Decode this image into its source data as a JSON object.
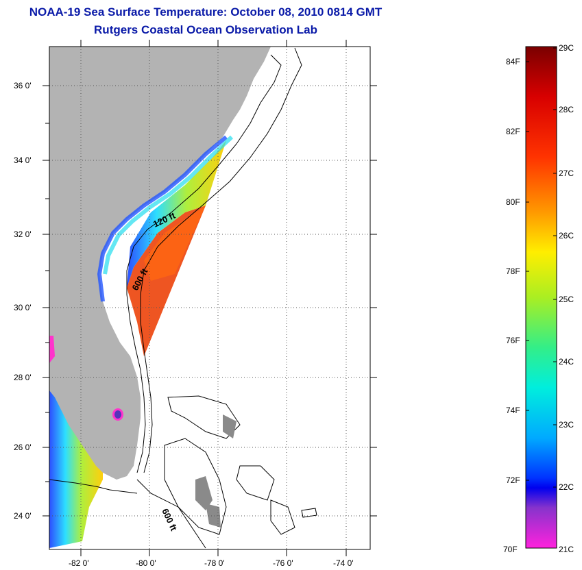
{
  "title": "NOAA-19 Sea Surface Temperature:  October 08, 2010 0814 GMT",
  "subtitle": "Rutgers Coastal Ocean Observation Lab",
  "lat_labels": [
    "36 0'",
    "34 0'",
    "32 0'",
    "30 0'",
    "28 0'",
    "26 0'",
    "24 0'"
  ],
  "lon_labels": [
    "-82 0'",
    "-80 0'",
    "-78 0'",
    "-76 0'",
    "-74 0'"
  ],
  "contour_labels": [
    "120 ft",
    "600 ft",
    "600 ft"
  ],
  "colorbar": {
    "fahrenheit": [
      "84F",
      "82F",
      "80F",
      "78F",
      "76F",
      "74F",
      "72F",
      "70F"
    ],
    "celsius": [
      "29C",
      "28C",
      "27C",
      "26C",
      "25C",
      "24C",
      "23C",
      "22C",
      "21C"
    ]
  },
  "colors": {
    "land": "#b3b3b3",
    "title": "#0a1aa8",
    "grid": "#555555"
  }
}
